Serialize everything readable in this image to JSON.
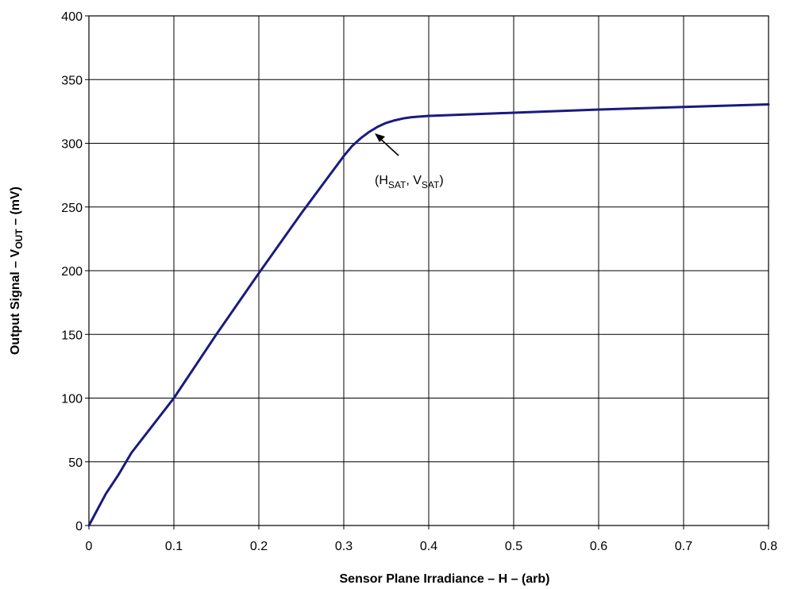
{
  "chart_data": {
    "type": "line",
    "xlabel_main": "Sensor Plane Irradiance – H – (arb)",
    "ylabel_prefix": "Output Signal – V",
    "ylabel_sub": "OUT",
    "ylabel_suffix": " – (mV)",
    "xlim": [
      0,
      0.8
    ],
    "ylim": [
      0,
      400
    ],
    "xticks": [
      "0",
      "0.1",
      "0.2",
      "0.3",
      "0.4",
      "0.5",
      "0.6",
      "0.7",
      "0.8"
    ],
    "yticks": [
      "0",
      "50",
      "100",
      "150",
      "200",
      "250",
      "300",
      "350",
      "400"
    ],
    "grid": true,
    "line_color": "#1a1a80",
    "series": [
      {
        "x": [
          0,
          0.02,
          0.035,
          0.05,
          0.1,
          0.15,
          0.2,
          0.25,
          0.28,
          0.3,
          0.31,
          0.32,
          0.33,
          0.34,
          0.35,
          0.36,
          0.37,
          0.38,
          0.4,
          0.5,
          0.6,
          0.7,
          0.8
        ],
        "y": [
          0,
          25,
          40,
          57,
          100,
          150,
          198,
          245,
          272,
          290,
          298,
          304,
          309,
          313,
          316,
          318,
          319.5,
          320.5,
          321.5,
          324,
          326.5,
          328.5,
          330.5
        ]
      }
    ],
    "annotation": {
      "label_open": "(H",
      "label_sub1": "SAT",
      "label_mid": ", V",
      "label_sub2": "SAT",
      "label_close": ")",
      "point": [
        0.335,
        310
      ]
    }
  }
}
